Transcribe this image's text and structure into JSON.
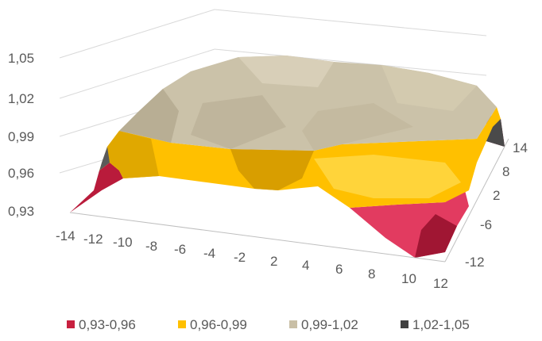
{
  "chart_data": {
    "type": "surface",
    "title": "",
    "z_axis": {
      "ticks": [
        "0,93",
        "0,96",
        "0,99",
        "1,02",
        "1,05"
      ],
      "range": [
        0.93,
        1.05
      ]
    },
    "x_axis": {
      "ticks": [
        "-14",
        "-12",
        "-10",
        "-8",
        "-6",
        "-4",
        "-2",
        "2",
        "4",
        "6",
        "8",
        "10",
        "12"
      ]
    },
    "y_axis": {
      "ticks": [
        "-12",
        "-6",
        "2",
        "8",
        "14"
      ]
    },
    "grid": true,
    "legend": {
      "position": "bottom",
      "bands": [
        {
          "label": "0,93-0,96",
          "color": "#c8203f"
        },
        {
          "label": "0,96-0,99",
          "color": "#ffc000"
        },
        {
          "label": "0,99-1,02",
          "color": "#c9bfa6"
        },
        {
          "label": "1,02-1,05",
          "color": "#404040"
        }
      ]
    }
  }
}
